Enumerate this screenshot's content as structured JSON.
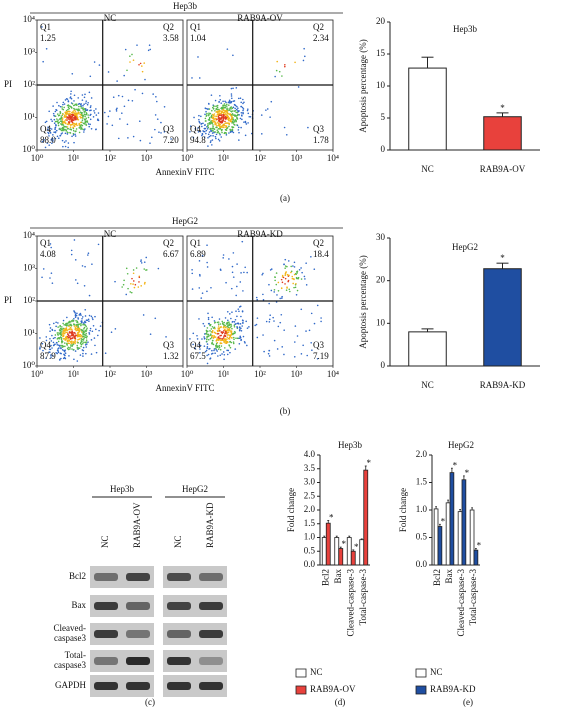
{
  "chart_data": [
    {
      "type": "flow",
      "title": "Hep3b",
      "panel": "(a)",
      "xlabel": "AnnexinV FITC",
      "ylabel": "PI",
      "xscale": "log",
      "yscale": "log",
      "xlim": [
        1,
        10000
      ],
      "ylim": [
        1,
        10000
      ],
      "xticks": [
        {
          "value": 1,
          "label": "10⁰"
        },
        {
          "value": 10,
          "label": "10¹"
        },
        {
          "value": 100,
          "label": "10²"
        },
        {
          "value": 1000,
          "label": "10³"
        },
        {
          "value": 10000,
          "label": "10⁴"
        }
      ],
      "yticks": [
        {
          "value": 1,
          "label": "10⁰"
        },
        {
          "value": 10,
          "label": "10¹"
        },
        {
          "value": 100,
          "label": "10²"
        },
        {
          "value": 1000,
          "label": "10³"
        },
        {
          "value": 10000,
          "label": "10⁴"
        }
      ],
      "plots": [
        {
          "title": "NC",
          "quadrants": [
            "Q1",
            "Q2",
            "Q3",
            "Q4"
          ],
          "values": [
            1.25,
            3.58,
            7.2,
            88
          ],
          "value_labels": [
            "1.25",
            "3.58",
            "7.20",
            "88.0"
          ]
        },
        {
          "title": "RAB9A-OV",
          "quadrants": [
            "Q1",
            "Q2",
            "Q3",
            "Q4"
          ],
          "values": [
            1.04,
            2.34,
            1.78,
            94.8
          ],
          "value_labels": [
            "1.04",
            "2.34",
            "1.78",
            "94.8"
          ]
        }
      ]
    },
    {
      "type": "bar",
      "title": "Hep3b",
      "ylabel": "Apoptosis percentage (%)",
      "categories": [
        "NC",
        "RAB9A-OV"
      ],
      "values": [
        12.8,
        5.2
      ],
      "errors": [
        1.7,
        0.6
      ],
      "colors": [
        "#ffffff",
        "#e8413c"
      ],
      "annotations": [
        null,
        "*"
      ],
      "ylim": [
        0,
        20
      ],
      "yticks": [
        0,
        5,
        10,
        15,
        20
      ]
    },
    {
      "type": "flow",
      "title": "HepG2",
      "panel": "(b)",
      "xlabel": "AnnexinV FITC",
      "ylabel": "PI",
      "xscale": "log",
      "yscale": "log",
      "xlim": [
        1,
        10000
      ],
      "ylim": [
        1,
        10000
      ],
      "xticks": [
        {
          "value": 1,
          "label": "10⁰"
        },
        {
          "value": 10,
          "label": "10¹"
        },
        {
          "value": 100,
          "label": "10²"
        },
        {
          "value": 1000,
          "label": "10³"
        },
        {
          "value": 10000,
          "label": "10⁴"
        }
      ],
      "yticks": [
        {
          "value": 1,
          "label": "10⁰"
        },
        {
          "value": 10,
          "label": "10¹"
        },
        {
          "value": 100,
          "label": "10²"
        },
        {
          "value": 1000,
          "label": "10³"
        },
        {
          "value": 10000,
          "label": "10⁴"
        }
      ],
      "plots": [
        {
          "title": "NC",
          "quadrants": [
            "Q1",
            "Q2",
            "Q3",
            "Q4"
          ],
          "values": [
            4.08,
            6.67,
            1.32,
            87.9
          ],
          "value_labels": [
            "4.08",
            "6.67",
            "1.32",
            "87.9"
          ]
        },
        {
          "title": "RAB9A-KD",
          "quadrants": [
            "Q1",
            "Q2",
            "Q3",
            "Q4"
          ],
          "values": [
            6.89,
            18.4,
            7.19,
            67.5
          ],
          "value_labels": [
            "6.89",
            "18.4",
            "7.19",
            "67.5"
          ]
        }
      ]
    },
    {
      "type": "bar",
      "title": "HepG2",
      "ylabel": "Apoptosis percentage (%)",
      "categories": [
        "NC",
        "RAB9A-KD"
      ],
      "values": [
        8,
        22.8
      ],
      "errors": [
        0.7,
        1.3
      ],
      "colors": [
        "#ffffff",
        "#1f4ea1"
      ],
      "annotations": [
        null,
        "*"
      ],
      "ylim": [
        0,
        30
      ],
      "yticks": [
        0,
        10,
        20,
        30
      ]
    },
    {
      "type": "blot",
      "panel": "(c)",
      "groups": [
        {
          "name": "Hep3b",
          "lanes": [
            "NC",
            "RAB9A-OV"
          ]
        },
        {
          "name": "HepG2",
          "lanes": [
            "NC",
            "RAB9A-KD"
          ]
        }
      ],
      "rows": [
        [
          "Bcl2"
        ],
        [
          "Bax"
        ],
        [
          "Cleaved-",
          "caspase3"
        ],
        [
          "Total-",
          "caspase3"
        ],
        [
          "GAPDH"
        ]
      ]
    },
    {
      "type": "grouped-bar",
      "title": "Hep3b",
      "panel": "(d)",
      "ylabel": "Fold change",
      "categories": [
        "Bcl2",
        "Bax",
        "Cleaved-caspase-3",
        "Total-caspase-3"
      ],
      "ylim": [
        0,
        4
      ],
      "yticks": [
        {
          "value": 0,
          "label": "0.0"
        },
        0.5,
        {
          "value": 1,
          "label": "1.0"
        },
        1.5,
        {
          "value": 2,
          "label": "2.0"
        },
        2.5,
        {
          "value": 3,
          "label": "3.0"
        },
        3.5,
        {
          "value": 4,
          "label": "4.0"
        }
      ],
      "series": [
        {
          "name": "NC",
          "color": "#ffffff",
          "values": [
            1.0,
            1.0,
            1.0,
            0.92
          ],
          "errors": [
            0.05,
            0.05,
            0.05,
            0.03
          ]
        },
        {
          "name": "RAB9A-OV",
          "color": "#e8413c",
          "values": [
            1.52,
            0.6,
            0.5,
            3.45
          ],
          "errors": [
            0.1,
            0.05,
            0.05,
            0.15
          ],
          "annotation": "*"
        }
      ]
    },
    {
      "type": "grouped-bar",
      "title": "HepG2",
      "panel": "(e)",
      "ylabel": "Fold change",
      "categories": [
        "Bcl2",
        "Bax",
        "Cleaved-caspase-3",
        "Total-caspase-3"
      ],
      "ylim": [
        0,
        2
      ],
      "yticks": [
        {
          "value": 0,
          "label": "0.0"
        },
        0.5,
        {
          "value": 1,
          "label": "1.0"
        },
        1.5,
        {
          "value": 2,
          "label": "2.0"
        }
      ],
      "series": [
        {
          "name": "NC",
          "color": "#ffffff",
          "values": [
            1.02,
            1.13,
            0.97,
            1.0
          ],
          "errors": [
            0.04,
            0.05,
            0.04,
            0.04
          ]
        },
        {
          "name": "RAB9A-KD",
          "color": "#1f4ea1",
          "values": [
            0.7,
            1.68,
            1.55,
            0.27
          ],
          "errors": [
            0.04,
            0.08,
            0.07,
            0.03
          ],
          "annotation": "*"
        }
      ]
    }
  ]
}
